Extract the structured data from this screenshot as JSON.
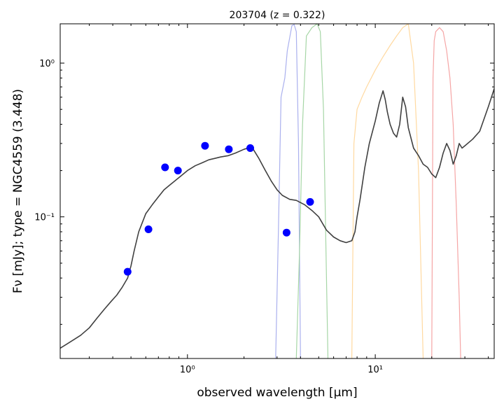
{
  "chart_data": {
    "type": "line",
    "title": "203704 (z = 0.322)",
    "xlabel": "observed wavelength [μm]",
    "ylabel": "Fν [mJy];  type = NGC4559 (3.448)",
    "x_scale": "log",
    "y_scale": "log",
    "xlim": [
      0.21,
      43
    ],
    "ylim": [
      0.012,
      1.8
    ],
    "x_tick_labels": [
      {
        "value": 1,
        "label": "10⁰"
      },
      {
        "value": 10,
        "label": "10¹"
      }
    ],
    "y_tick_labels": [
      {
        "value": 0.1,
        "label": "10⁻¹"
      },
      {
        "value": 1,
        "label": "10⁰"
      }
    ],
    "grid": false,
    "colors": {
      "sed": "#404040",
      "photometry": "#0000ff",
      "filter_blue": "#aab0ee",
      "filter_green": "#a6d6a6",
      "filter_orange": "#ffd9a0",
      "filter_red": "#f5a5a5"
    },
    "series": [
      {
        "kind": "template",
        "x": [
          0.21,
          0.23,
          0.25,
          0.27,
          0.3,
          0.33,
          0.36,
          0.39,
          0.42,
          0.45,
          0.48,
          0.5,
          0.52,
          0.55,
          0.6,
          0.65,
          0.7,
          0.75,
          0.8,
          0.85,
          0.9,
          1.0,
          1.1,
          1.2,
          1.3,
          1.4,
          1.5,
          1.65,
          1.8,
          2.0,
          2.2,
          2.4,
          2.6,
          2.8,
          3.0,
          3.2,
          3.5,
          3.8,
          4.2,
          4.6,
          5.0,
          5.5,
          6.0,
          6.5,
          7.0,
          7.5,
          7.8,
          8.0,
          8.3,
          8.8,
          9.3,
          10.0,
          10.5,
          11.0,
          11.3,
          11.6,
          12.0,
          12.5,
          13.0,
          13.5,
          14.0,
          14.5,
          15.0,
          16.0,
          17.0,
          18.0,
          19.0,
          20.0,
          21.0,
          22.0,
          23.0,
          24.0,
          25.0,
          26.0,
          27.0,
          28.0,
          29.0,
          30.0,
          33.0,
          36.0,
          40.0,
          43.0
        ],
        "y": [
          0.014,
          0.015,
          0.016,
          0.017,
          0.019,
          0.022,
          0.025,
          0.028,
          0.031,
          0.035,
          0.04,
          0.048,
          0.06,
          0.08,
          0.105,
          0.12,
          0.135,
          0.15,
          0.16,
          0.17,
          0.18,
          0.2,
          0.215,
          0.225,
          0.235,
          0.24,
          0.245,
          0.25,
          0.26,
          0.275,
          0.285,
          0.24,
          0.2,
          0.17,
          0.15,
          0.138,
          0.13,
          0.128,
          0.12,
          0.11,
          0.1,
          0.082,
          0.074,
          0.07,
          0.068,
          0.07,
          0.08,
          0.1,
          0.13,
          0.21,
          0.3,
          0.42,
          0.55,
          0.66,
          0.58,
          0.48,
          0.4,
          0.35,
          0.33,
          0.4,
          0.6,
          0.52,
          0.38,
          0.28,
          0.25,
          0.22,
          0.21,
          0.19,
          0.18,
          0.21,
          0.26,
          0.3,
          0.27,
          0.22,
          0.25,
          0.3,
          0.28,
          0.29,
          0.32,
          0.36,
          0.52,
          0.68
        ]
      },
      {
        "kind": "photometry",
        "x": [
          0.48,
          0.62,
          0.76,
          0.89,
          1.24,
          1.66,
          2.16,
          3.37,
          4.5
        ],
        "y": [
          0.044,
          0.083,
          0.21,
          0.2,
          0.29,
          0.275,
          0.28,
          0.079,
          0.125
        ]
      },
      {
        "kind": "filter",
        "color": "filter_blue",
        "x": [
          2.95,
          3.05,
          3.15,
          3.3,
          3.4,
          3.6,
          3.7,
          3.8,
          3.9,
          4.0
        ],
        "y": [
          0.012,
          0.08,
          0.6,
          0.8,
          1.2,
          1.75,
          1.78,
          1.6,
          0.3,
          0.012
        ]
      },
      {
        "kind": "filter",
        "color": "filter_green",
        "x": [
          3.8,
          3.95,
          4.1,
          4.3,
          4.6,
          4.9,
          5.1,
          5.3,
          5.5,
          5.6
        ],
        "y": [
          0.012,
          0.06,
          0.4,
          1.5,
          1.7,
          1.8,
          1.6,
          0.5,
          0.04,
          0.012
        ]
      },
      {
        "kind": "filter",
        "color": "filter_orange",
        "x": [
          7.5,
          7.7,
          8.0,
          8.5,
          9.0,
          10.0,
          11.0,
          12.0,
          13.0,
          14.0,
          15.0,
          16.0,
          17.0,
          18.0
        ],
        "y": [
          0.012,
          0.3,
          0.5,
          0.6,
          0.7,
          0.9,
          1.1,
          1.3,
          1.5,
          1.7,
          1.8,
          1.0,
          0.2,
          0.012
        ]
      },
      {
        "kind": "filter",
        "color": "filter_red",
        "x": [
          20.0,
          20.3,
          20.6,
          21.0,
          22.0,
          23.0,
          24.0,
          25.0,
          26.0,
          27.0,
          28.0,
          28.5
        ],
        "y": [
          0.012,
          0.8,
          1.4,
          1.6,
          1.7,
          1.6,
          1.2,
          0.8,
          0.4,
          0.12,
          0.03,
          0.012
        ]
      }
    ]
  }
}
